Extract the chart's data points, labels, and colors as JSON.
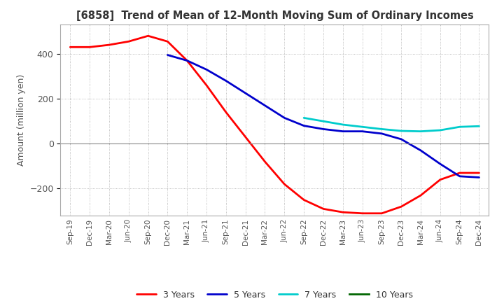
{
  "title": "[6858]  Trend of Mean of 12-Month Moving Sum of Ordinary Incomes",
  "ylabel": "Amount (million yen)",
  "line_colors": {
    "3y": "#ff0000",
    "5y": "#0000cc",
    "7y": "#00cccc",
    "10y": "#006600"
  },
  "legend_labels": [
    "3 Years",
    "5 Years",
    "7 Years",
    "10 Years"
  ],
  "background_color": "#ffffff",
  "grid_color": "#aaaaaa",
  "ylim": [
    -320,
    530
  ],
  "yticks": [
    -200,
    0,
    200,
    400
  ],
  "x_labels": [
    "Sep-19",
    "Dec-19",
    "Mar-20",
    "Jun-20",
    "Sep-20",
    "Dec-20",
    "Mar-21",
    "Jun-21",
    "Sep-21",
    "Dec-21",
    "Mar-22",
    "Jun-22",
    "Sep-22",
    "Dec-22",
    "Mar-23",
    "Jun-23",
    "Sep-23",
    "Dec-23",
    "Mar-24",
    "Jun-24",
    "Sep-24",
    "Dec-24"
  ],
  "3y_values": [
    430,
    430,
    440,
    455,
    480,
    455,
    370,
    260,
    140,
    30,
    -80,
    -180,
    -250,
    -290,
    -305,
    -310,
    -310,
    -280,
    -230,
    -160,
    -130,
    -130
  ],
  "5y_values": [
    null,
    null,
    null,
    null,
    null,
    395,
    370,
    330,
    280,
    225,
    170,
    115,
    80,
    65,
    55,
    55,
    45,
    20,
    -30,
    -90,
    -145,
    -150
  ],
  "7y_values": [
    null,
    null,
    null,
    null,
    null,
    null,
    null,
    null,
    null,
    null,
    null,
    null,
    115,
    100,
    85,
    75,
    65,
    57,
    55,
    60,
    75,
    78
  ],
  "10y_values": [
    null,
    null,
    null,
    null,
    null,
    null,
    null,
    null,
    null,
    null,
    null,
    null,
    null,
    null,
    null,
    null,
    null,
    null,
    null,
    null,
    null,
    null
  ]
}
